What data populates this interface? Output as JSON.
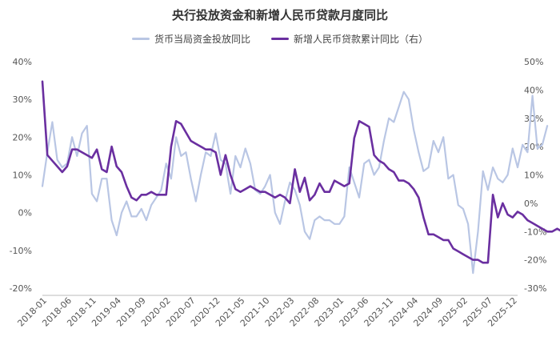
{
  "chart_data": {
    "type": "line",
    "title": "央行投放资金和新增人民币贷款月度同比",
    "series": [
      {
        "name": "货币当局资金投放同比",
        "axis": "left",
        "color": "#b9c6e4",
        "values": [
          7,
          16,
          24,
          14,
          12,
          13,
          20,
          15,
          21,
          23,
          5,
          3,
          9,
          9,
          -2,
          -6,
          0,
          3,
          -1,
          -1,
          1,
          -2,
          2,
          4,
          6,
          13,
          9,
          20,
          15,
          16,
          9,
          3,
          10,
          16,
          15,
          21,
          14,
          13,
          5,
          15,
          12,
          17,
          13,
          6,
          5,
          7,
          10,
          0,
          -3,
          3,
          8,
          6,
          2,
          -5,
          -7,
          -2,
          -1,
          -2,
          -2,
          -3,
          -3,
          -1,
          12,
          8,
          4,
          13,
          14,
          10,
          12,
          19,
          25,
          24,
          28,
          32,
          30,
          22,
          16,
          11,
          12,
          19,
          16,
          20,
          9,
          10,
          2,
          1,
          -3,
          -16,
          -5,
          11,
          6,
          12,
          9,
          8,
          10,
          17,
          12,
          18,
          16,
          31,
          17,
          18,
          23
        ]
      },
      {
        "name": "新增人民币贷款累计同比（右）",
        "axis": "right",
        "color": "#6a2fa0",
        "values": [
          43,
          17,
          15,
          13,
          11,
          13,
          19,
          19,
          18,
          17,
          16,
          19,
          12,
          11,
          20,
          13,
          11,
          6,
          2,
          1,
          3,
          3,
          4,
          3,
          3,
          3,
          20,
          29,
          28,
          25,
          22,
          21,
          20,
          19,
          19,
          18,
          10,
          17,
          10,
          5,
          4,
          5,
          6,
          5,
          4,
          4,
          3,
          2,
          3,
          2,
          0,
          12,
          4,
          9,
          1,
          3,
          7,
          4,
          4,
          8,
          7,
          6,
          7,
          23,
          29,
          28,
          27,
          17,
          15,
          14,
          12,
          11,
          8,
          8,
          7,
          5,
          2,
          -5,
          -11,
          -11,
          -12,
          -13,
          -13,
          -16,
          -17,
          -18,
          -19,
          -20,
          -20,
          -21,
          -21,
          3,
          -5,
          0,
          -4,
          -5,
          -3,
          -4,
          -6,
          -7,
          -8,
          -9,
          -10,
          -10,
          -9,
          -10,
          -12
        ]
      }
    ],
    "x_start": "2018-01",
    "x_ticks": [
      "2018-01",
      "2018-06",
      "2018-11",
      "2019-04",
      "2019-09",
      "2020-02",
      "2020-07",
      "2020-12",
      "2021-05",
      "2021-10",
      "2022-03",
      "2022-08",
      "2023-01",
      "2023-06",
      "2023-11",
      "2024-04",
      "2024-09",
      "2025-02",
      "2025-07",
      "2025-12"
    ],
    "y_left": {
      "min": -20,
      "max": 40,
      "step": 10,
      "ticks": [
        "-20%",
        "-10%",
        "0%",
        "10%",
        "20%",
        "30%",
        "40%"
      ]
    },
    "y_right": {
      "min": -30,
      "max": 50,
      "step": 10,
      "ticks": [
        "-30%",
        "-20%",
        "-10%",
        "0%",
        "10%",
        "20%",
        "30%",
        "40%",
        "50%"
      ]
    },
    "grid": false,
    "legend_position": "top-center"
  }
}
